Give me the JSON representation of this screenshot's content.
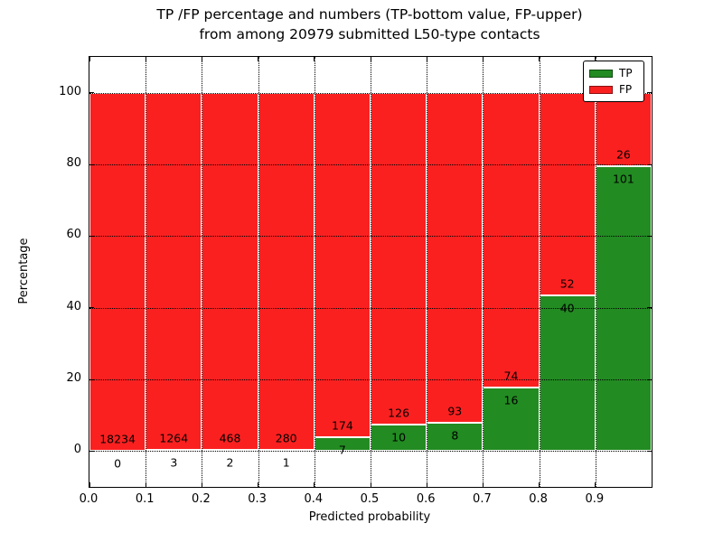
{
  "figure": {
    "title_line1": "TP /FP percentage and numbers (TP-bottom value, FP-upper)",
    "title_line2": "from among 20979 submitted L50-type contacts"
  },
  "chart_data": {
    "type": "bar",
    "stacked": true,
    "normalized_to_percent": true,
    "title": "TP /FP percentage and numbers (TP-bottom value, FP-upper) from among 20979 submitted L50-type contacts",
    "total_contacts": 20979,
    "xlabel": "Predicted probability",
    "ylabel": "Percentage",
    "xlim": [
      0.0,
      1.0
    ],
    "ylim": [
      -10,
      110
    ],
    "bin_width": 0.1,
    "x_tick_labels": [
      "0.0",
      "0.1",
      "0.2",
      "0.3",
      "0.4",
      "0.5",
      "0.6",
      "0.7",
      "0.8",
      "0.9"
    ],
    "y_tick_values": [
      0,
      20,
      40,
      60,
      80,
      100
    ],
    "y_tick_labels": [
      "0",
      "20",
      "40",
      "60",
      "80",
      "100"
    ],
    "grid": true,
    "grid_style": "dotted",
    "legend_position": "upper right",
    "series": [
      {
        "name": "TP",
        "color": "#228B22",
        "position": "bottom"
      },
      {
        "name": "FP",
        "color": "#FB2020",
        "position": "top"
      }
    ],
    "bins": [
      {
        "x_start": 0.0,
        "x_end": 0.1,
        "tp": 0,
        "fp": 18234
      },
      {
        "x_start": 0.1,
        "x_end": 0.2,
        "tp": 3,
        "fp": 1264
      },
      {
        "x_start": 0.2,
        "x_end": 0.3,
        "tp": 2,
        "fp": 468
      },
      {
        "x_start": 0.3,
        "x_end": 0.4,
        "tp": 1,
        "fp": 280
      },
      {
        "x_start": 0.4,
        "x_end": 0.5,
        "tp": 7,
        "fp": 174
      },
      {
        "x_start": 0.5,
        "x_end": 0.6,
        "tp": 10,
        "fp": 126
      },
      {
        "x_start": 0.6,
        "x_end": 0.7,
        "tp": 8,
        "fp": 93
      },
      {
        "x_start": 0.7,
        "x_end": 0.8,
        "tp": 16,
        "fp": 74
      },
      {
        "x_start": 0.8,
        "x_end": 0.9,
        "tp": 40,
        "fp": 52
      },
      {
        "x_start": 0.9,
        "x_end": 1.0,
        "tp": 101,
        "fp": 26
      }
    ]
  },
  "colors": {
    "tp": "#228B22",
    "fp": "#FB2020",
    "bar_edge": "#FFFFFF",
    "grid": "#000000",
    "text": "#000000",
    "background": "#FFFFFF"
  }
}
